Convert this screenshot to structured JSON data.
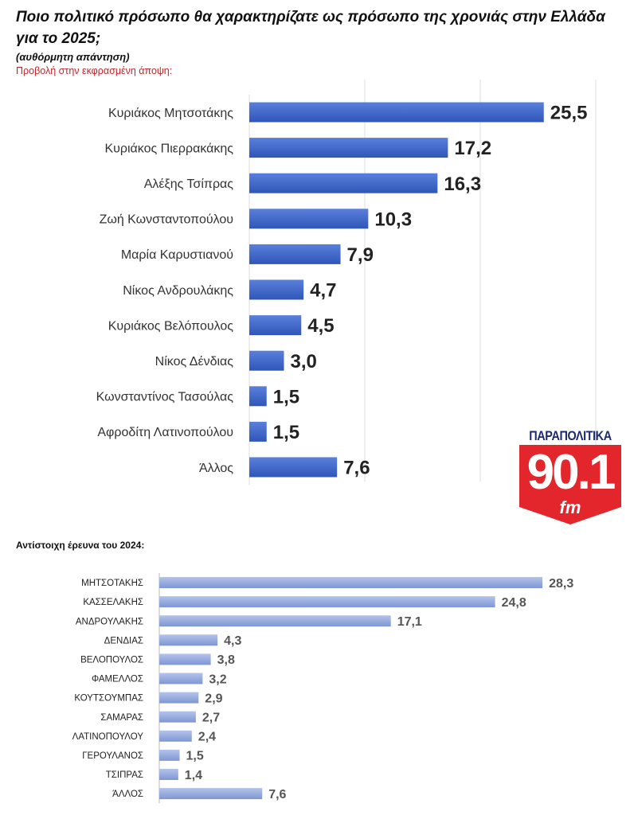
{
  "header": {
    "title": "Ποιο πολιτικό πρόσωπο θα χαρακτηρίζατε ως πρόσωπο της χρονιάς στην Ελλάδα για το 2025;",
    "subtitle": "(αυθόρμητη απάντηση)",
    "note": "Προβολή στην εκφρασμένη άποψη:"
  },
  "logo": {
    "brand": "ΠΑΡΑΠΟΛΙΤΙΚΑ",
    "frequency": "90.1",
    "band": "fm"
  },
  "section2": {
    "title": "Αντίστοιχη έρευνα του 2024:"
  },
  "chart_data": [
    {
      "type": "bar",
      "orientation": "horizontal",
      "color": "#3e66c8",
      "grid": true,
      "categories": [
        "Κυριάκος Μητσοτάκης",
        "Κυριάκος Πιερρακάκης",
        "Αλέξης Τσίπρας",
        "Ζωή Κωνσταντοπούλου",
        "Μαρία Καρυστιανού",
        "Νίκος Ανδρουλάκης",
        "Κυριάκος Βελόπουλος",
        "Νίκος Δένδιας",
        "Κωνσταντίνος Τασούλας",
        "Αφροδίτη Λατινοπούλου",
        "Άλλος"
      ],
      "values": [
        25.5,
        17.2,
        16.3,
        10.3,
        7.9,
        4.7,
        4.5,
        3.0,
        1.5,
        1.5,
        7.6
      ],
      "labels": [
        "25,5",
        "17,2",
        "16,3",
        "10,3",
        "7,9",
        "4,7",
        "4,5",
        "3,0",
        "1,5",
        "1,5",
        "7,6"
      ],
      "xlim": [
        0,
        30
      ]
    },
    {
      "type": "bar",
      "orientation": "horizontal",
      "color": "#8ea4dc",
      "grid": false,
      "categories": [
        "ΜΗΤΣΟΤΑΚΗΣ",
        "ΚΑΣΣΕΛΑΚΗΣ",
        "ΑΝΔΡΟΥΛΑΚΗΣ",
        "ΔΕΝΔΙΑΣ",
        "ΒΕΛΟΠΟΥΛΟΣ",
        "ΦΑΜΕΛΛΟΣ",
        "ΚΟΥΤΣΟΥΜΠΑΣ",
        "ΣΑΜΑΡΑΣ",
        "ΛΑΤΙΝΟΠΟΥΛΟΥ",
        "ΓΕΡΟΥΛΑΝΟΣ",
        "ΤΣΙΠΡΑΣ",
        "ΆΛΛΟΣ"
      ],
      "values": [
        28.3,
        24.8,
        17.1,
        4.3,
        3.8,
        3.2,
        2.9,
        2.7,
        2.4,
        1.5,
        1.4,
        7.6
      ],
      "labels": [
        "28,3",
        "24,8",
        "17,1",
        "4,3",
        "3,8",
        "3,2",
        "2,9",
        "2,7",
        "2,4",
        "1,5",
        "1,4",
        "7,6"
      ],
      "xlim": [
        0,
        30
      ]
    }
  ]
}
